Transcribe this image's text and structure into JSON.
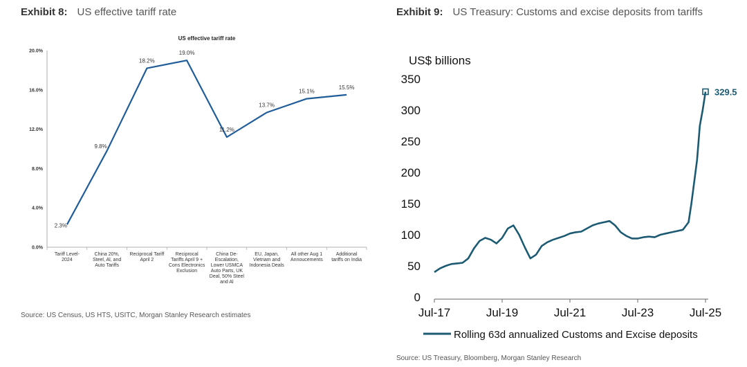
{
  "exhibit8": {
    "label": "Exhibit 8:",
    "title": "US effective tariff rate",
    "source": "Source: US Census, US HTS, USITC, Morgan Stanley Research estimates"
  },
  "exhibit9": {
    "label": "Exhibit 9:",
    "title": "US Treasury: Customs and excise deposits from tariffs",
    "source": "Source: US Treasury, Bloomberg, Morgan Stanley Research"
  },
  "chart_data": [
    {
      "type": "line",
      "title": "US effective tariff rate",
      "categories": [
        [
          "Tariff Level-",
          "2024"
        ],
        [
          "China 20%,",
          "Steel, Al, and",
          "Auto Tariffs"
        ],
        [
          "Reciprocal Tariff",
          "April 2"
        ],
        [
          "Reciprocal",
          "Tariffs April 9 +",
          "Cons Electronics",
          "Exclusion"
        ],
        [
          "China De-",
          "Escalation,",
          "Lower USMCA",
          "Auto Parts, UK",
          "Deal, 50% Steel",
          "and Al"
        ],
        [
          "EU, Japan,",
          "Vietnam and",
          "Indonesia Deals"
        ],
        [
          "All other Aug 1",
          "Annoucements"
        ],
        [
          "Additional",
          "tariffs on India"
        ]
      ],
      "values": [
        2.3,
        9.8,
        18.2,
        19.0,
        11.2,
        13.7,
        15.1,
        15.5
      ],
      "data_labels": [
        "2.3%",
        "9.8%",
        "18.2%",
        "19.0%",
        "11.2%",
        "13.7%",
        "15.1%",
        "15.5%"
      ],
      "ylim": [
        0,
        20
      ],
      "yticks": [
        "0.0%",
        "4.0%",
        "8.0%",
        "12.0%",
        "16.0%",
        "20.0%"
      ],
      "ytick_values": [
        0,
        4,
        8,
        12,
        16,
        20
      ],
      "color": "#1f5c99",
      "grid": false
    },
    {
      "type": "line",
      "ylabel": "US$ billions",
      "ylim": [
        0,
        350
      ],
      "yticks": [
        0,
        50,
        100,
        150,
        200,
        250,
        300,
        350
      ],
      "xlim": [
        "2017-07",
        "2025-07"
      ],
      "xticks": [
        [
          "2017-07",
          "Jul-17"
        ],
        [
          "2019-07",
          "Jul-19"
        ],
        [
          "2021-07",
          "Jul-21"
        ],
        [
          "2023-07",
          "Jul-23"
        ],
        [
          "2025-07",
          "Jul-25"
        ]
      ],
      "color": "#1b5a72",
      "end_label": "329.5",
      "grid": false,
      "legend_position": "bottom",
      "series": [
        {
          "name": "Rolling 63d annualized Customs and Excise deposits",
          "x": [
            "2017-07",
            "2017-09",
            "2017-11",
            "2018-01",
            "2018-03",
            "2018-05",
            "2018-07",
            "2018-09",
            "2018-11",
            "2019-01",
            "2019-03",
            "2019-05",
            "2019-07",
            "2019-09",
            "2019-11",
            "2020-01",
            "2020-03",
            "2020-05",
            "2020-07",
            "2020-09",
            "2020-11",
            "2021-01",
            "2021-03",
            "2021-05",
            "2021-07",
            "2021-09",
            "2021-11",
            "2022-01",
            "2022-03",
            "2022-05",
            "2022-07",
            "2022-09",
            "2022-11",
            "2023-01",
            "2023-03",
            "2023-05",
            "2023-07",
            "2023-09",
            "2023-11",
            "2024-01",
            "2024-03",
            "2024-05",
            "2024-07",
            "2024-09",
            "2024-11",
            "2025-01",
            "2025-02",
            "2025-03",
            "2025-04",
            "2025-05",
            "2025-06",
            "2025-07"
          ],
          "y": [
            40,
            46,
            50,
            53,
            54,
            55,
            62,
            78,
            90,
            95,
            92,
            86,
            95,
            110,
            115,
            100,
            80,
            62,
            68,
            82,
            88,
            92,
            95,
            98,
            102,
            104,
            105,
            110,
            115,
            118,
            120,
            122,
            115,
            104,
            98,
            94,
            94,
            96,
            97,
            96,
            100,
            102,
            104,
            106,
            108,
            120,
            150,
            185,
            220,
            275,
            300,
            329.5
          ]
        }
      ]
    }
  ]
}
